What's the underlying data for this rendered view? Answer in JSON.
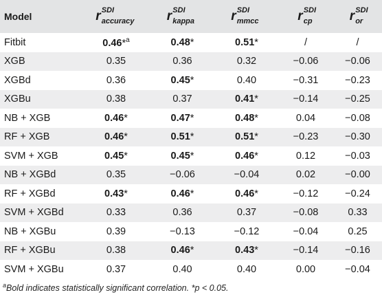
{
  "header": {
    "model": "Model",
    "r_symbol": "r",
    "sdi": "SDI",
    "metrics": [
      "accuracy",
      "kappa",
      "mmcc",
      "cp",
      "or"
    ]
  },
  "rows": [
    {
      "name": "Fitbit",
      "values": [
        "0.46",
        "0.48",
        "0.51",
        "/",
        "/"
      ],
      "bold": [
        true,
        true,
        true,
        false,
        false
      ],
      "star": [
        true,
        true,
        true,
        false,
        false
      ],
      "note": "a"
    },
    {
      "name": "XGB",
      "values": [
        "0.35",
        "0.36",
        "0.32",
        "−0.06",
        "−0.06"
      ],
      "bold": [
        false,
        false,
        false,
        false,
        false
      ],
      "star": [
        false,
        false,
        false,
        false,
        false
      ]
    },
    {
      "name": "XGBd",
      "values": [
        "0.36",
        "0.45",
        "0.40",
        "−0.31",
        "−0.23"
      ],
      "bold": [
        false,
        true,
        false,
        false,
        false
      ],
      "star": [
        false,
        true,
        false,
        false,
        false
      ]
    },
    {
      "name": "XGBu",
      "values": [
        "0.38",
        "0.37",
        "0.41",
        "−0.14",
        "−0.25"
      ],
      "bold": [
        false,
        false,
        true,
        false,
        false
      ],
      "star": [
        false,
        false,
        true,
        false,
        false
      ]
    },
    {
      "name": "NB + XGB",
      "values": [
        "0.46",
        "0.47",
        "0.48",
        "0.04",
        "−0.08"
      ],
      "bold": [
        true,
        true,
        true,
        false,
        false
      ],
      "star": [
        true,
        true,
        true,
        false,
        false
      ]
    },
    {
      "name": "RF + XGB",
      "values": [
        "0.46",
        "0.51",
        "0.51",
        "−0.23",
        "−0.30"
      ],
      "bold": [
        true,
        true,
        true,
        false,
        false
      ],
      "star": [
        true,
        true,
        true,
        false,
        false
      ]
    },
    {
      "name": "SVM + XGB",
      "values": [
        "0.45",
        "0.45",
        "0.46",
        "0.12",
        "−0.03"
      ],
      "bold": [
        true,
        true,
        true,
        false,
        false
      ],
      "star": [
        true,
        true,
        true,
        false,
        false
      ]
    },
    {
      "name": "NB + XGBd",
      "values": [
        "0.35",
        "−0.06",
        "−0.04",
        "0.02",
        "−0.00"
      ],
      "bold": [
        false,
        false,
        false,
        false,
        false
      ],
      "star": [
        false,
        false,
        false,
        false,
        false
      ]
    },
    {
      "name": "RF + XGBd",
      "values": [
        "0.43",
        "0.46",
        "0.46",
        "−0.12",
        "−0.24"
      ],
      "bold": [
        true,
        true,
        true,
        false,
        false
      ],
      "star": [
        true,
        true,
        true,
        false,
        false
      ]
    },
    {
      "name": "SVM + XGBd",
      "values": [
        "0.33",
        "0.36",
        "0.37",
        "−0.08",
        "0.33"
      ],
      "bold": [
        false,
        false,
        false,
        false,
        false
      ],
      "star": [
        false,
        false,
        false,
        false,
        false
      ]
    },
    {
      "name": "NB + XGBu",
      "values": [
        "0.39",
        "−0.13",
        "−0.12",
        "−0.04",
        "0.25"
      ],
      "bold": [
        false,
        false,
        false,
        false,
        false
      ],
      "star": [
        false,
        false,
        false,
        false,
        false
      ]
    },
    {
      "name": "RF + XGBu",
      "values": [
        "0.38",
        "0.46",
        "0.43",
        "−0.14",
        "−0.16"
      ],
      "bold": [
        false,
        true,
        true,
        false,
        false
      ],
      "star": [
        false,
        true,
        true,
        false,
        false
      ]
    },
    {
      "name": "SVM + XGBu",
      "values": [
        "0.37",
        "0.40",
        "0.40",
        "0.00",
        "−0.04"
      ],
      "bold": [
        false,
        false,
        false,
        false,
        false
      ],
      "star": [
        false,
        false,
        false,
        false,
        false
      ]
    }
  ],
  "footnote": {
    "marker": "a",
    "text": "Bold indicates statistically significant correlation. *p < 0.05."
  }
}
